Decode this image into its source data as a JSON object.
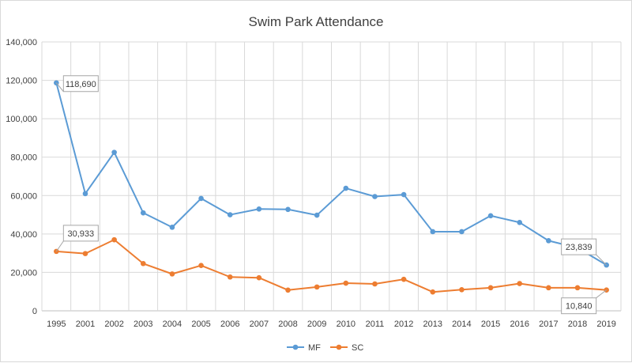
{
  "chart_data": {
    "type": "line",
    "title": "Swim Park Attendance",
    "categories": [
      "1995",
      "2001",
      "2002",
      "2003",
      "2004",
      "2005",
      "2006",
      "2007",
      "2008",
      "2009",
      "2010",
      "2011",
      "2012",
      "2013",
      "2014",
      "2015",
      "2016",
      "2017",
      "2018",
      "2019"
    ],
    "series": [
      {
        "name": "MF",
        "color": "#5b9bd5",
        "values": [
          118690,
          61000,
          82500,
          51000,
          43500,
          58500,
          50000,
          53000,
          52800,
          49800,
          63800,
          59500,
          60500,
          41200,
          41200,
          49500,
          46000,
          36500,
          32800,
          23839
        ]
      },
      {
        "name": "SC",
        "color": "#ed7d31",
        "values": [
          30933,
          29800,
          37000,
          24600,
          19200,
          23600,
          17600,
          17200,
          10800,
          12400,
          14400,
          14000,
          16400,
          9800,
          11000,
          12000,
          14200,
          12000,
          12000,
          10840
        ]
      }
    ],
    "ylim": [
      0,
      140000
    ],
    "yticks": [
      "0",
      "20,000",
      "40,000",
      "60,000",
      "80,000",
      "100,000",
      "120,000",
      "140,000"
    ],
    "grid": true,
    "legend_position": "bottom-center",
    "annotations": [
      {
        "text": "118,690",
        "series": "MF",
        "category": "1995"
      },
      {
        "text": "30,933",
        "series": "SC",
        "category": "1995"
      },
      {
        "text": "23,839",
        "series": "MF",
        "category": "2019"
      },
      {
        "text": "10,840",
        "series": "SC",
        "category": "2019"
      }
    ]
  }
}
